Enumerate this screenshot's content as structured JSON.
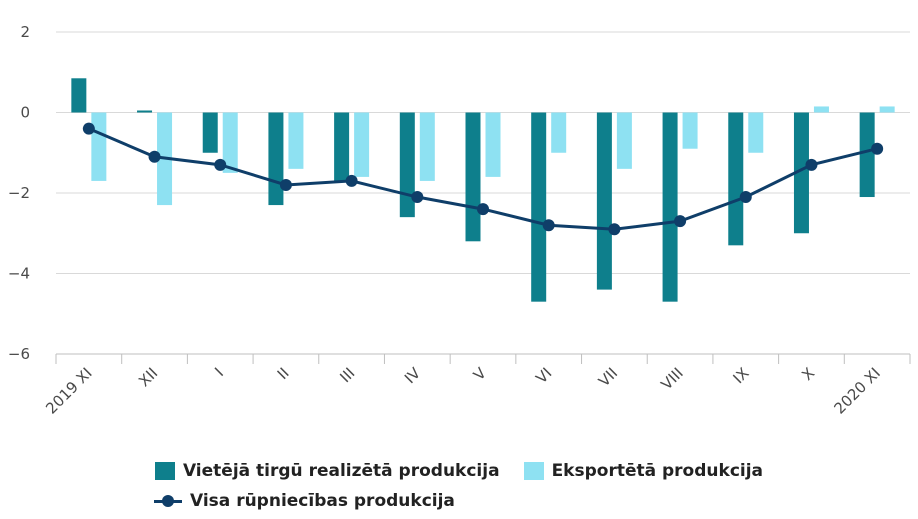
{
  "chart_data": {
    "type": "bar",
    "categories": [
      "2019 XI",
      "XII",
      "I",
      "II",
      "III",
      "IV",
      "V",
      "VI",
      "VII",
      "VIII",
      "IX",
      "X",
      "2020 XI"
    ],
    "series": [
      {
        "name": "Vietējā tirgū realizētā produkcija",
        "type": "bar",
        "color": "#0e7f8c",
        "values": [
          0.85,
          0.05,
          -1.0,
          -2.3,
          -1.7,
          -2.6,
          -3.2,
          -4.7,
          -4.4,
          -4.7,
          -3.3,
          -3.0,
          -2.1
        ]
      },
      {
        "name": "Eksportētā produkcija",
        "type": "bar",
        "color": "#8ee1f2",
        "values": [
          -1.7,
          -2.3,
          -1.5,
          -1.4,
          -1.6,
          -1.7,
          -1.6,
          -1.0,
          -1.4,
          -0.9,
          -1.0,
          0.15,
          0.15
        ]
      },
      {
        "name": "Visa rūpniecības produkcija",
        "type": "line",
        "color": "#0f3e69",
        "values": [
          -0.4,
          -1.1,
          -1.3,
          -1.8,
          -1.7,
          -2.1,
          -2.4,
          -2.8,
          -2.9,
          -2.7,
          -2.1,
          -1.3,
          -0.9
        ]
      }
    ],
    "y_ticks": [
      "2",
      "0",
      "−2",
      "−4",
      "−6"
    ],
    "ylim": [
      -6,
      2
    ],
    "grid": true,
    "legend_position": "bottom"
  }
}
